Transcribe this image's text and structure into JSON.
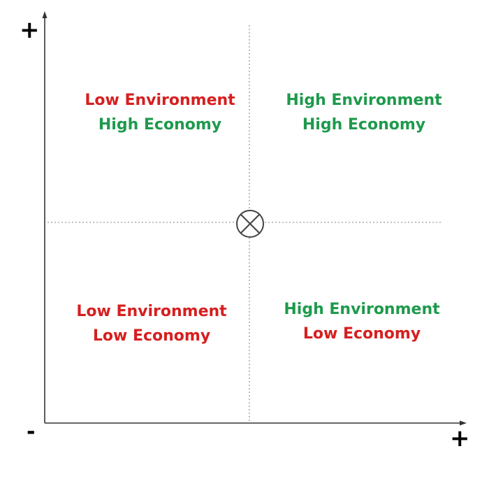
{
  "axes": {
    "y_plus": "+",
    "x_minus": "-",
    "x_plus": "+"
  },
  "colors": {
    "low": "#d61f1f",
    "high": "#1e9a4c",
    "axis": "#333333",
    "grid": "#9a9a9a"
  },
  "center_marker": "circled-x",
  "quadrants": {
    "top_left": {
      "line1": "Low Environment",
      "line1_tone": "low",
      "line2": "High Economy",
      "line2_tone": "high"
    },
    "top_right": {
      "line1": "High Environment",
      "line1_tone": "high",
      "line2": "High Economy",
      "line2_tone": "high"
    },
    "bottom_left": {
      "line1": "Low Environment",
      "line1_tone": "low",
      "line2": "Low Economy",
      "line2_tone": "low"
    },
    "bottom_right": {
      "line1": "High Environment",
      "line1_tone": "high",
      "line2": "Low Economy",
      "line2_tone": "low"
    }
  }
}
